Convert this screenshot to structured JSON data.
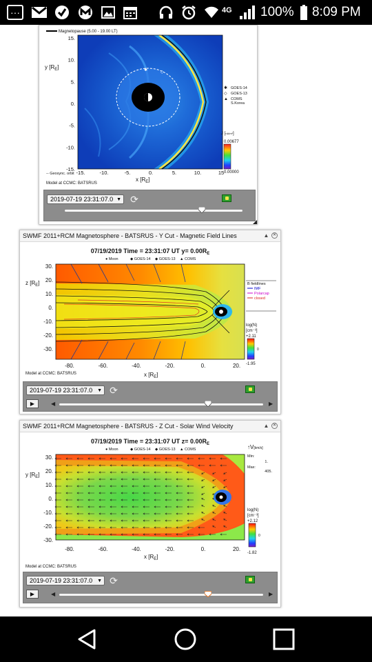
{
  "status_bar": {
    "icons": [
      "message-icon",
      "gmail-icon",
      "check-icon",
      "m-icon",
      "image-icon",
      "calendar-icon",
      "headphones-icon",
      "alarm-icon",
      "wifi-icon",
      "signal-icon",
      "battery-icon"
    ],
    "network": "4G",
    "battery": "100%",
    "time": "8:09 PM"
  },
  "panel1": {
    "legend_title": "Magnetopause (5.00 - 19.00 LT)",
    "y_axis_label": "y [R",
    "y_axis_sub": "E",
    "y_ticks": [
      "15.",
      "10.",
      "5.",
      "0.",
      "-5.",
      "-10.",
      "-15."
    ],
    "x_ticks": [
      "-15.",
      "-10.",
      "-5.",
      "0.",
      "5.",
      "10.",
      "15"
    ],
    "x_axis_label": "x [R",
    "x_axis_sub": "E",
    "legend_items": [
      {
        "symbol": "✱",
        "label": "GOES-14"
      },
      {
        "symbol": "◇",
        "label": "GOES-13"
      },
      {
        "symbol": "▲",
        "label": "COMS"
      },
      {
        "symbol": "",
        "label": "S.Korea"
      }
    ],
    "j_label": "J",
    "cbar_top": "0.00677",
    "cbar_bottom": "0.00000",
    "geosync_label": "-- Geosync. orbit",
    "model_label": "Model at CCMC: BATSRUS",
    "time_select": "2019-07-19 23:31:07.0",
    "slider_fraction": 0.77
  },
  "panel2": {
    "title": "SWMF 2011+RCM Magnetosphere - BATSRUS - Y Cut - Magnetic Field Lines",
    "plot_title": "07/19/2019  Time = 23:31:07  UT  y= 0.00R",
    "plot_title_sub": "E",
    "legend_line": [
      "● Moon",
      "◆ GOES-14",
      "◆ GOES-13",
      "▲ COMS"
    ],
    "z_axis_label": "z [R",
    "z_axis_sub": "E",
    "y_ticks": [
      "30.",
      "20.",
      "10.",
      "0.",
      "-10.",
      "-20.",
      "-30."
    ],
    "x_ticks": [
      "-80.",
      "-60.",
      "-40.",
      "-20.",
      "0.",
      "20."
    ],
    "x_axis_label": "x [R",
    "x_axis_sub": "E",
    "fieldlines_legend": [
      {
        "label": "B fieldlines",
        "color": "#000000"
      },
      {
        "label": "IMF",
        "color": "#0000cc"
      },
      {
        "label": "Polarcap",
        "color": "#cc00cc"
      },
      {
        "label": "closed",
        "color": "#dd2222"
      }
    ],
    "cbar_label": "log(N)",
    "cbar_unit": "[cm⁻³]",
    "cbar_top": "+2.11",
    "cbar_mid": "0",
    "cbar_bottom": "-1.95",
    "model_label": "Model at CCMC: BATSRUS",
    "time_select": "2019-07-19 23:31:07.0",
    "slider_fraction": 0.73
  },
  "panel3": {
    "title": "SWMF 2011+RCM Magnetosphere - BATSRUS - Z Cut - Solar Wind Velocity",
    "plot_title": "07/19/2019  Time = 23:31:07  UT  z= 0.00R",
    "plot_title_sub": "E",
    "legend_line": [
      "● Moon",
      "◆ GOES-14",
      "◆ GOES-13",
      "▲ COMS"
    ],
    "y_axis_label": "y [R",
    "y_axis_sub": "E",
    "y_ticks": [
      "30.",
      "20.",
      "10.",
      "0.",
      "-10.",
      "-20.",
      "-30."
    ],
    "x_ticks": [
      "-80.",
      "-60.",
      "-40.",
      "-20.",
      "0.",
      "20."
    ],
    "x_axis_label": "x [R",
    "x_axis_sub": "E",
    "v_label": "V",
    "v_unit": "[km/s]",
    "v_min_label": "Min:",
    "v_min_value": "1.",
    "v_max_label": "Max:",
    "v_max_value": "405.",
    "cbar_label": "log(N)",
    "cbar_unit": "[cm⁻³]",
    "cbar_top": "+2.12",
    "cbar_mid": "0",
    "cbar_bottom": "-1.82",
    "model_label": "Model at CCMC: BATSRUS",
    "time_select": "2019-07-19 23:31:07.0",
    "slider_fraction": 0.73
  },
  "nav": {
    "back": "back-icon",
    "home": "home-icon",
    "recents": "recents-icon"
  }
}
